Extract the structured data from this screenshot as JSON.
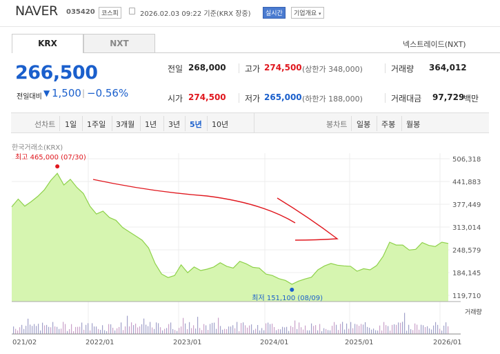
{
  "header": {
    "name": "NAVER",
    "code": "035420",
    "market_badge": "코스피",
    "datetime": "2026.02.03 09:22 기준(KRX 장중)",
    "live_badge": "실시간",
    "corp_button": "기업개요"
  },
  "tabs": [
    {
      "label": "KRX",
      "active": true
    },
    {
      "label": "NXT",
      "active": false
    }
  ],
  "nxt_link": "넥스트레이드(NXT)",
  "price": {
    "current": "266,500",
    "change_label": "전일대비",
    "change_arrow": "▼",
    "change": "1,500",
    "change_pct": "−0.56%"
  },
  "info": {
    "prev_close_label": "전일",
    "prev_close": "268,000",
    "high_label": "고가",
    "high": "274,500",
    "upper_limit": "(상한가 348,000)",
    "volume_label": "거래량",
    "volume": "364,012",
    "open_label": "시가",
    "open": "274,500",
    "low_label": "저가",
    "low": "265,000",
    "lower_limit": "(하한가 188,000)",
    "amount_label": "거래대금",
    "amount": "97,729",
    "amount_unit": "백만"
  },
  "range": {
    "line_label": "선차트",
    "ranges": [
      "1일",
      "1주일",
      "3개월",
      "1년",
      "3년",
      "5년",
      "10년"
    ],
    "active_range": "5년",
    "candle_label": "봉차트",
    "candle_options": [
      "일봉",
      "주봉",
      "월봉"
    ]
  },
  "chart_market_label": "한국거래소(KRX)",
  "chart_data": {
    "type": "area",
    "ylim": [
      119710,
      506318
    ],
    "y_ticks": [
      "506,318",
      "441,883",
      "377,449",
      "313,014",
      "248,579",
      "184,145",
      "119,710"
    ],
    "x_ticks": [
      "021/02",
      "2022/01",
      "2023/01",
      "2024/01",
      "2025/01",
      "2026/01"
    ],
    "max_annotation": "최고 465,000 (07/30)",
    "min_annotation": "최저 151,100 (08/09)",
    "volume_label": "거래량",
    "series": [
      {
        "values": [
          370000,
          392000,
          372000,
          385000,
          400000,
          418000,
          445000,
          465000,
          432000,
          448000,
          425000,
          408000,
          372000,
          350000,
          358000,
          340000,
          332000,
          312000,
          300000,
          288000,
          276000,
          254000,
          210000,
          180000,
          170000,
          176000,
          206000,
          184000,
          200000,
          190000,
          194000,
          200000,
          212000,
          202000,
          197000,
          216000,
          209000,
          199000,
          197000,
          180000,
          176000,
          167000,
          162000,
          151100,
          160000,
          166000,
          171000,
          192000,
          203000,
          210000,
          205000,
          203000,
          202000,
          188000,
          195000,
          192000,
          204000,
          230000,
          270000,
          262000,
          262000,
          248000,
          250000,
          269000,
          261000,
          258000,
          270000,
          266500
        ]
      }
    ]
  },
  "annotation_colors": {
    "arrow": "#e0171e",
    "area_fill": "#d6f5b0",
    "line": "#8ed14a",
    "max_dot": "#e0171e",
    "min_dot": "#1a5fcc"
  }
}
